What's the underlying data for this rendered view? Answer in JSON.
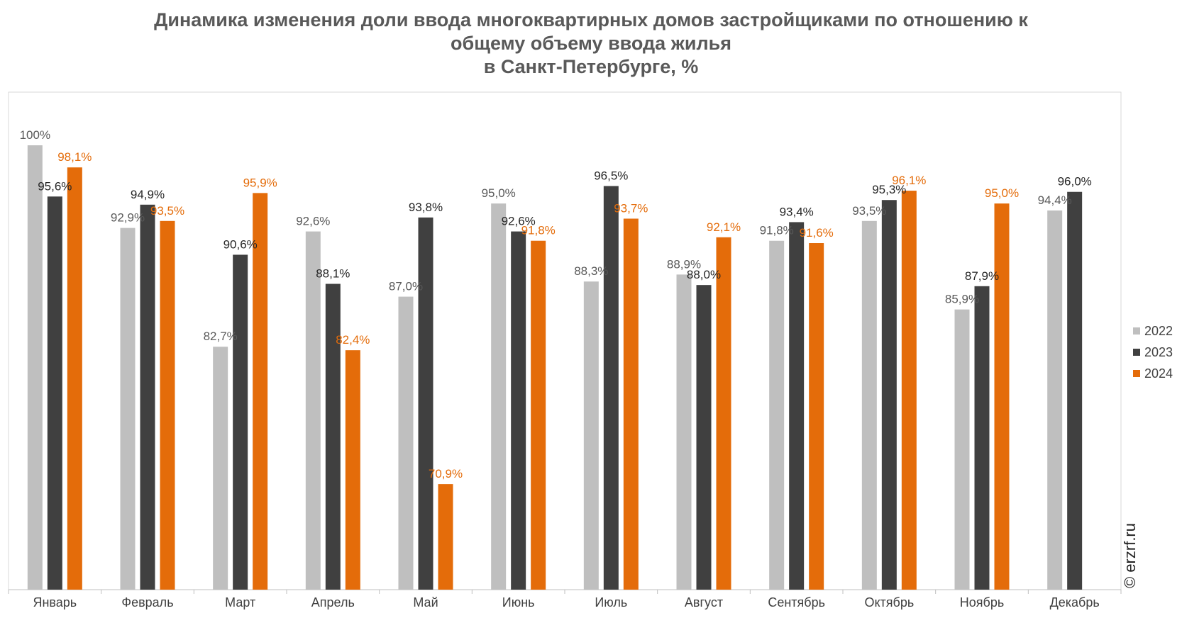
{
  "title_lines": [
    "Динамика изменения доли ввода многоквартирных домов застройщиками по отношению к",
    "общему объему ввода жилья",
    "в Санкт-Петербурге, %"
  ],
  "watermark": "© erzrf.ru",
  "colors": {
    "2022": "#bfbfbf",
    "2023": "#404040",
    "2024": "#e46c0a"
  },
  "chart_data": {
    "type": "bar",
    "title": "Динамика изменения доли ввода многоквартирных домов застройщиками по отношению к общему объему ввода жилья в Санкт-Петербурге, %",
    "categories": [
      "Январь",
      "Февраль",
      "Март",
      "Апрель",
      "Май",
      "Июнь",
      "Июль",
      "Август",
      "Сентябрь",
      "Октябрь",
      "Ноябрь",
      "Декабрь"
    ],
    "series": [
      {
        "name": "2022",
        "values": [
          100,
          92.9,
          82.7,
          92.6,
          87.0,
          95.0,
          88.3,
          88.9,
          91.8,
          93.5,
          85.9,
          94.4
        ],
        "labels": [
          "100%",
          "92,9%",
          "82,7%",
          "92,6%",
          "87,0%",
          "95,0%",
          "88,3%",
          "88,9%",
          "91,8%",
          "93,5%",
          "85,9%",
          "94,4%"
        ]
      },
      {
        "name": "2023",
        "values": [
          95.6,
          94.9,
          90.6,
          88.1,
          93.8,
          92.6,
          96.5,
          88.0,
          93.4,
          95.3,
          87.9,
          96.0
        ],
        "labels": [
          "95,6%",
          "94,9%",
          "90,6%",
          "88,1%",
          "93,8%",
          "92,6%",
          "96,5%",
          "88,0%",
          "93,4%",
          "95,3%",
          "87,9%",
          "96,0%"
        ]
      },
      {
        "name": "2024",
        "values": [
          98.1,
          93.5,
          95.9,
          82.4,
          70.9,
          91.8,
          93.7,
          92.1,
          91.6,
          96.1,
          95.0,
          null
        ],
        "labels": [
          "98,1%",
          "93,5%",
          "95,9%",
          "82,4%",
          "70,9%",
          "91,8%",
          "93,7%",
          "92,1%",
          "91,6%",
          "96,1%",
          "95,0%",
          ""
        ]
      }
    ],
    "legend_position": "right",
    "grid": false
  }
}
